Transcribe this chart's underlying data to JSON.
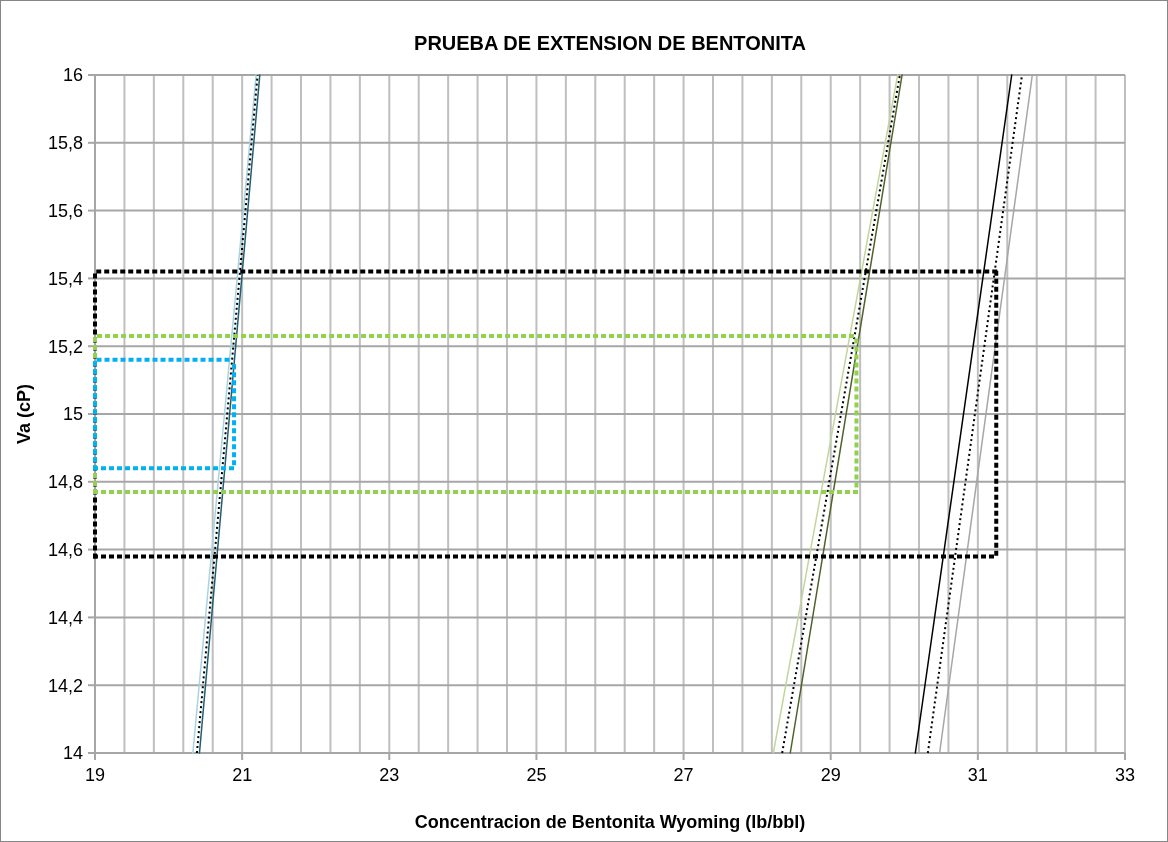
{
  "chart_data": {
    "type": "line",
    "title": "PRUEBA DE EXTENSION DE BENTONITA",
    "xlabel": "Concentracion de Bentonita Wyoming (lb/bbl)",
    "ylabel": "Va (cP)",
    "xlim": [
      19,
      33
    ],
    "ylim": [
      14,
      16
    ],
    "xticks": [
      19,
      {
        "value": 19.4,
        "label": null
      },
      {
        "value": 19.8,
        "label": null
      },
      {
        "value": 20.2,
        "label": null
      },
      {
        "value": 20.6,
        "label": null
      },
      21,
      {
        "value": 21.4,
        "label": null
      },
      {
        "value": 21.8,
        "label": null
      },
      {
        "value": 22.2,
        "label": null
      },
      {
        "value": 22.6,
        "label": null
      },
      23,
      {
        "value": 23.4,
        "label": null
      },
      {
        "value": 23.8,
        "label": null
      },
      {
        "value": 24.2,
        "label": null
      },
      {
        "value": 24.6,
        "label": null
      },
      25,
      {
        "value": 25.4,
        "label": null
      },
      {
        "value": 25.8,
        "label": null
      },
      {
        "value": 26.2,
        "label": null
      },
      {
        "value": 26.6,
        "label": null
      },
      27,
      {
        "value": 27.4,
        "label": null
      },
      {
        "value": 27.8,
        "label": null
      },
      {
        "value": 28.2,
        "label": null
      },
      {
        "value": 28.6,
        "label": null
      },
      29,
      {
        "value": 29.4,
        "label": null
      },
      {
        "value": 29.8,
        "label": null
      },
      {
        "value": 30.2,
        "label": null
      },
      {
        "value": 30.6,
        "label": null
      },
      31,
      {
        "value": 31.4,
        "label": null
      },
      {
        "value": 31.8,
        "label": null
      },
      {
        "value": 32.2,
        "label": null
      },
      {
        "value": 32.6,
        "label": null
      },
      33
    ],
    "yticks": [
      14,
      {
        "value": 14.2,
        "label": "14,2"
      },
      {
        "value": 14.4,
        "label": "14,4"
      },
      {
        "value": 14.6,
        "label": "14,6"
      },
      {
        "value": 14.8,
        "label": "14,8"
      },
      15,
      {
        "value": 15.2,
        "label": "15,2"
      },
      {
        "value": 15.4,
        "label": "15,4"
      },
      {
        "value": 15.6,
        "label": "15,6"
      },
      {
        "value": 15.8,
        "label": "15,8"
      },
      16
    ],
    "grid": true,
    "marker": "none",
    "series": [
      {
        "color": "#a8d4e2",
        "x": [
          20.33,
          21.19
        ],
        "values": [
          14,
          16
        ]
      },
      {
        "color": "#1f5f73",
        "x": [
          20.42,
          21.24
        ],
        "values": [
          14,
          16
        ]
      },
      {
        "color": "#000000",
        "line_style": "dotted",
        "x": [
          20.385,
          21.21
        ],
        "values": [
          14,
          16
        ]
      },
      {
        "color": "#c3d69b",
        "x": [
          28.22,
          29.91
        ],
        "values": [
          14,
          16
        ]
      },
      {
        "color": "#4f6228",
        "x": [
          28.45,
          29.97
        ],
        "values": [
          14,
          16
        ]
      },
      {
        "color": "#000000",
        "line_style": "dotted",
        "x": [
          28.34,
          29.94
        ],
        "values": [
          14,
          16
        ]
      },
      {
        "color": "#000000",
        "x": [
          30.15,
          31.46
        ],
        "values": [
          14,
          16
        ]
      },
      {
        "color": "#a6a6a6",
        "x": [
          30.48,
          31.74
        ],
        "values": [
          14,
          16
        ]
      },
      {
        "color": "#000000",
        "line_style": "dotted",
        "x": [
          30.32,
          31.6
        ],
        "values": [
          14,
          16
        ]
      },
      {
        "color": "#000000",
        "line_style": "dotted",
        "x": [
          19,
          19,
          31.25
        ],
        "values": [
          14.58,
          15.42,
          15.42
        ]
      },
      {
        "color": "#000000",
        "line_style": "dotted",
        "x": [
          19,
          31.25,
          31.25
        ],
        "values": [
          14.58,
          14.58,
          15.42
        ]
      },
      {
        "color": "#92d050",
        "line_style": "dotted",
        "x": [
          19,
          19,
          29.35
        ],
        "values": [
          14.77,
          15.23,
          15.23
        ]
      },
      {
        "color": "#92d050",
        "line_style": "dotted",
        "x": [
          19,
          29.35,
          29.35
        ],
        "values": [
          14.77,
          14.77,
          15.23
        ]
      },
      {
        "color": "#00b0f0",
        "line_style": "dotted",
        "x": [
          19,
          19,
          20.89
        ],
        "values": [
          14.84,
          15.16,
          15.16
        ]
      },
      {
        "color": "#00b0f0",
        "line_style": "dotted",
        "x": [
          19,
          20.89,
          20.89
        ],
        "values": [
          14.84,
          14.84,
          15.16
        ]
      }
    ]
  }
}
